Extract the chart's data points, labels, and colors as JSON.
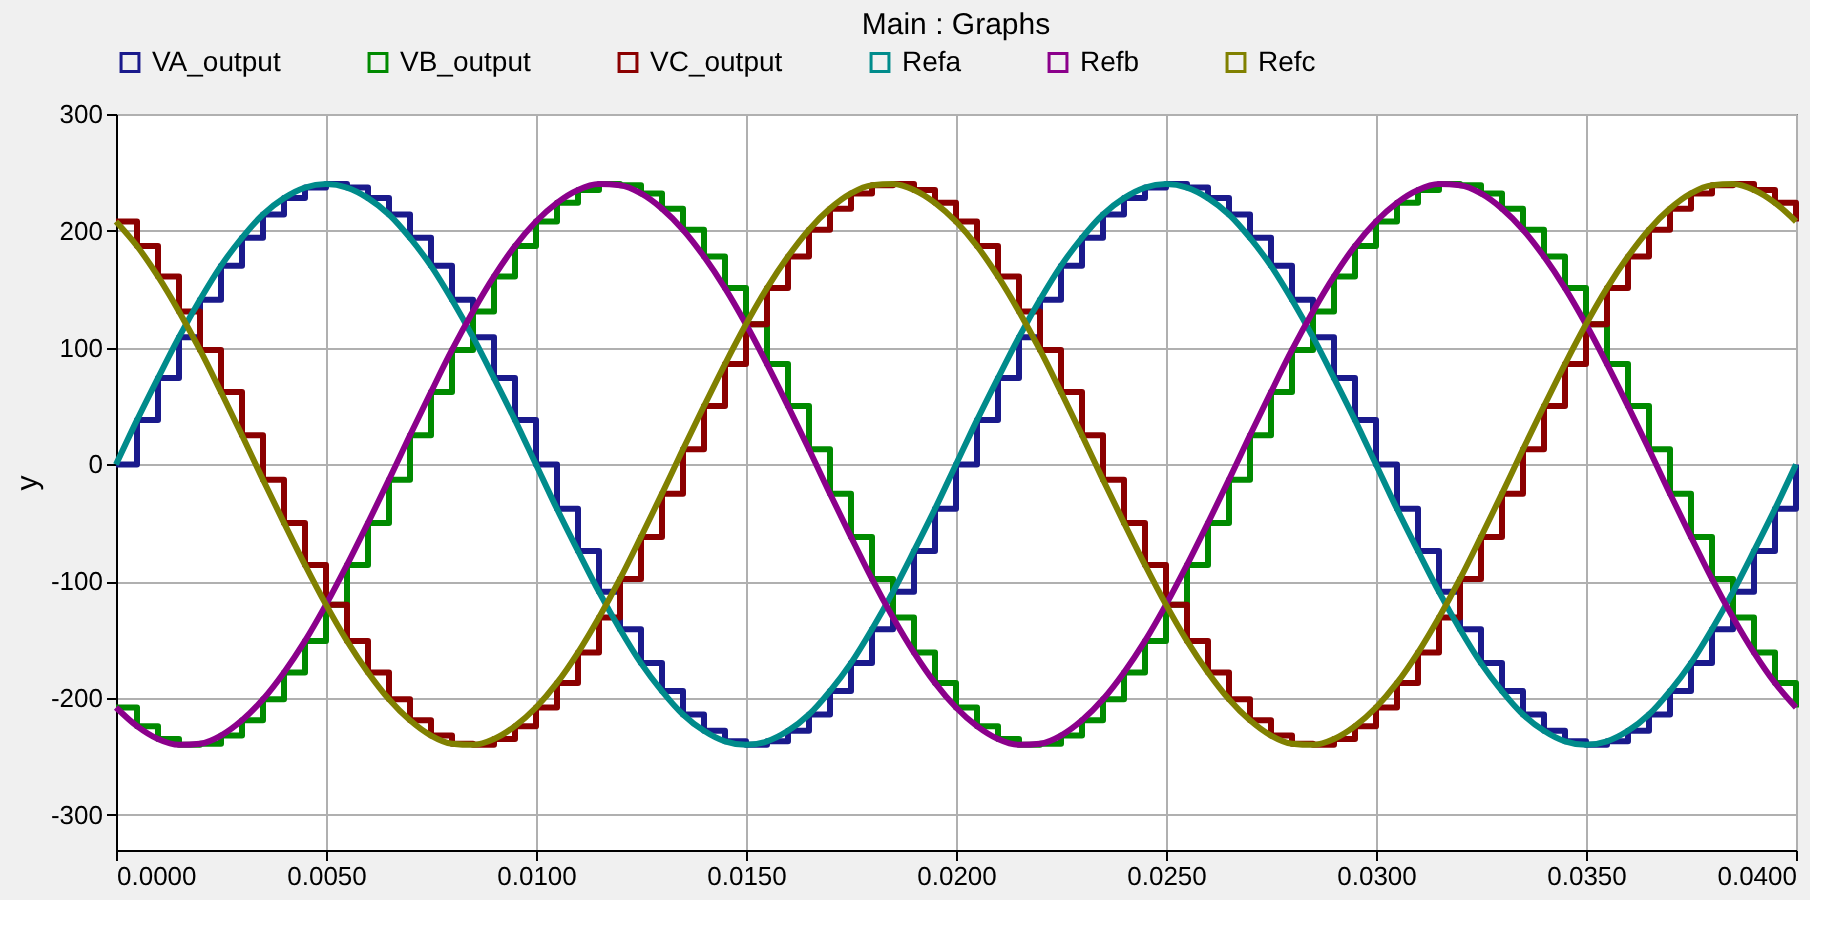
{
  "chart_data": {
    "type": "line",
    "title": "Main : Graphs",
    "ylabel": "y",
    "x": [
      0,
      0.0005,
      0.001,
      0.0015,
      0.002,
      0.0025,
      0.003,
      0.0035,
      0.004,
      0.0045,
      0.005,
      0.0055,
      0.006,
      0.0065,
      0.007,
      0.0075,
      0.008,
      0.0085,
      0.009,
      0.0095,
      0.01,
      0.0105,
      0.011,
      0.0115,
      0.012,
      0.0125,
      0.013,
      0.0135,
      0.014,
      0.0145,
      0.015,
      0.0155,
      0.016,
      0.0165,
      0.017,
      0.0175,
      0.018,
      0.0185,
      0.019,
      0.0195,
      0.02,
      0.0205,
      0.021,
      0.0215,
      0.022,
      0.0225,
      0.023,
      0.0235,
      0.024,
      0.0245,
      0.025,
      0.0255,
      0.026,
      0.0265,
      0.027,
      0.0275,
      0.028,
      0.0285,
      0.029,
      0.0295,
      0.03,
      0.0305,
      0.031,
      0.0315,
      0.032,
      0.0325,
      0.033,
      0.0335,
      0.034,
      0.0345,
      0.035,
      0.0355,
      0.036,
      0.0365,
      0.037,
      0.0375,
      0.038,
      0.0385,
      0.039,
      0.0395,
      0.04
    ],
    "series": [
      {
        "name": "VA_output",
        "type": "step",
        "color": "#1a1a8c",
        "values": [
          0,
          38,
          74,
          109,
          141,
          170,
          194,
          214,
          228,
          237,
          240,
          237,
          228,
          214,
          194,
          170,
          141,
          109,
          74,
          38,
          0,
          -38,
          -74,
          -109,
          -141,
          -170,
          -194,
          -214,
          -228,
          -237,
          -240,
          -237,
          -228,
          -214,
          -194,
          -170,
          -141,
          -109,
          -74,
          -38,
          0,
          38,
          74,
          109,
          141,
          170,
          194,
          214,
          228,
          237,
          240,
          237,
          228,
          214,
          194,
          170,
          141,
          109,
          74,
          38,
          0,
          -38,
          -74,
          -109,
          -141,
          -170,
          -194,
          -214,
          -228,
          -237,
          -240,
          -237,
          -228,
          -214,
          -194,
          -170,
          -141,
          -109,
          -74,
          -38,
          0
        ]
      },
      {
        "name": "VB_output",
        "type": "step",
        "color": "#008a00",
        "values": [
          -208,
          -224,
          -235,
          -240,
          -239,
          -232,
          -219,
          -201,
          -178,
          -151,
          -120,
          -86,
          -50,
          -13,
          25,
          62,
          98,
          131,
          161,
          187,
          208,
          224,
          235,
          240,
          239,
          232,
          219,
          201,
          178,
          151,
          120,
          86,
          50,
          13,
          -25,
          -62,
          -98,
          -131,
          -161,
          -187,
          -208,
          -224,
          -235,
          -240,
          -239,
          -232,
          -219,
          -201,
          -178,
          -151,
          -120,
          -86,
          -50,
          -13,
          25,
          62,
          98,
          131,
          161,
          187,
          208,
          224,
          235,
          240,
          239,
          232,
          219,
          201,
          178,
          151,
          120,
          86,
          50,
          13,
          -25,
          -62,
          -98,
          -131,
          -161,
          -187,
          -208
        ]
      },
      {
        "name": "VC_output",
        "type": "step",
        "color": "#8b0000",
        "values": [
          208,
          187,
          161,
          131,
          98,
          62,
          25,
          -13,
          -50,
          -86,
          -120,
          -151,
          -178,
          -201,
          -219,
          -232,
          -239,
          -240,
          -235,
          -224,
          -208,
          -187,
          -161,
          -131,
          -98,
          -62,
          -25,
          13,
          50,
          86,
          120,
          151,
          178,
          201,
          219,
          232,
          239,
          240,
          235,
          224,
          208,
          187,
          161,
          131,
          98,
          62,
          25,
          -13,
          -50,
          -86,
          -120,
          -151,
          -178,
          -201,
          -219,
          -232,
          -239,
          -240,
          -235,
          -224,
          -208,
          -187,
          -161,
          -131,
          -98,
          -62,
          -25,
          13,
          50,
          86,
          120,
          151,
          178,
          201,
          219,
          232,
          239,
          240,
          235,
          224,
          208
        ]
      },
      {
        "name": "Refa",
        "type": "line",
        "color": "#008b8b",
        "values": [
          0,
          38,
          74,
          109,
          141,
          170,
          194,
          214,
          228,
          237,
          240,
          237,
          228,
          214,
          194,
          170,
          141,
          109,
          74,
          38,
          0,
          -38,
          -74,
          -109,
          -141,
          -170,
          -194,
          -214,
          -228,
          -237,
          -240,
          -237,
          -228,
          -214,
          -194,
          -170,
          -141,
          -109,
          -74,
          -38,
          0,
          38,
          74,
          109,
          141,
          170,
          194,
          214,
          228,
          237,
          240,
          237,
          228,
          214,
          194,
          170,
          141,
          109,
          74,
          38,
          0,
          -38,
          -74,
          -109,
          -141,
          -170,
          -194,
          -214,
          -228,
          -237,
          -240,
          -237,
          -228,
          -214,
          -194,
          -170,
          -141,
          -109,
          -74,
          -38,
          0
        ]
      },
      {
        "name": "Refb",
        "type": "line",
        "color": "#8b008b",
        "values": [
          -208,
          -224,
          -235,
          -240,
          -239,
          -232,
          -219,
          -201,
          -178,
          -151,
          -120,
          -86,
          -50,
          -13,
          25,
          62,
          98,
          131,
          161,
          187,
          208,
          224,
          235,
          240,
          239,
          232,
          219,
          201,
          178,
          151,
          120,
          86,
          50,
          13,
          -25,
          -62,
          -98,
          -131,
          -161,
          -187,
          -208,
          -224,
          -235,
          -240,
          -239,
          -232,
          -219,
          -201,
          -178,
          -151,
          -120,
          -86,
          -50,
          -13,
          25,
          62,
          98,
          131,
          161,
          187,
          208,
          224,
          235,
          240,
          239,
          232,
          219,
          201,
          178,
          151,
          120,
          86,
          50,
          13,
          -25,
          -62,
          -98,
          -131,
          -161,
          -187,
          -208
        ]
      },
      {
        "name": "Refc",
        "type": "line",
        "color": "#808000",
        "values": [
          208,
          187,
          161,
          131,
          98,
          62,
          25,
          -13,
          -50,
          -86,
          -120,
          -151,
          -178,
          -201,
          -219,
          -232,
          -239,
          -240,
          -235,
          -224,
          -208,
          -187,
          -161,
          -131,
          -98,
          -62,
          -25,
          13,
          50,
          86,
          120,
          151,
          178,
          201,
          219,
          232,
          239,
          240,
          235,
          224,
          208,
          187,
          161,
          131,
          98,
          62,
          25,
          -13,
          -50,
          -86,
          -120,
          -151,
          -178,
          -201,
          -219,
          -232,
          -239,
          -240,
          -235,
          -224,
          -208,
          -187,
          -161,
          -131,
          -98,
          -62,
          -25,
          13,
          50,
          86,
          120,
          151,
          178,
          201,
          219,
          232,
          239,
          240,
          235,
          224,
          208
        ]
      }
    ],
    "xlim": [
      0,
      0.04
    ],
    "xticks": [
      {
        "value": 0,
        "label": "0.0000"
      },
      {
        "value": 0.005,
        "label": "0.0050"
      },
      {
        "value": 0.01,
        "label": "0.0100"
      },
      {
        "value": 0.015,
        "label": "0.0150"
      },
      {
        "value": 0.02,
        "label": "0.0200"
      },
      {
        "value": 0.025,
        "label": "0.0250"
      },
      {
        "value": 0.03,
        "label": "0.0300"
      },
      {
        "value": 0.035,
        "label": "0.0350"
      },
      {
        "value": 0.04,
        "label": "0.0400"
      }
    ],
    "ylim": [
      -330,
      300
    ],
    "yticks": [
      -300,
      -200,
      -100,
      0,
      100,
      200,
      300
    ],
    "grid": true,
    "legend": "top",
    "marker": "none",
    "line_style": "solid"
  }
}
